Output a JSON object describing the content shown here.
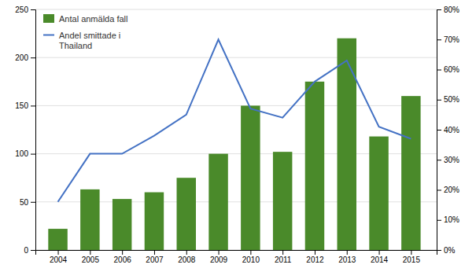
{
  "chart_data": {
    "type": "bar",
    "x": [
      2004,
      2005,
      2006,
      2007,
      2008,
      2009,
      2010,
      2011,
      2012,
      2013,
      2014,
      2015
    ],
    "xlim": [
      2003.3,
      2015.8
    ],
    "xticks": [
      2004,
      2005,
      2006,
      2007,
      2008,
      2009,
      2010,
      2011,
      2012,
      2013,
      2014,
      2015
    ],
    "ylim": [
      0,
      250
    ],
    "yticks": [
      0,
      50,
      100,
      150,
      200,
      250
    ],
    "y2lim": [
      0,
      0.8
    ],
    "y2ticks": [
      {
        "value": 0,
        "label": "0%"
      },
      {
        "value": 0.1,
        "label": "10%"
      },
      {
        "value": 0.2,
        "label": "20%"
      },
      {
        "value": 0.3,
        "label": "30%"
      },
      {
        "value": 0.4,
        "label": "40%"
      },
      {
        "value": 0.5,
        "label": "50%"
      },
      {
        "value": 0.6,
        "label": "60%"
      },
      {
        "value": 0.7,
        "label": "70%"
      },
      {
        "value": 0.8,
        "label": "80%"
      }
    ],
    "grid": true,
    "legend": "upper left",
    "series": [
      {
        "name": "Antal anmälda fall",
        "type": "bar",
        "color": "#4a8a2a",
        "values": [
          22,
          63,
          53,
          60,
          75,
          100,
          150,
          102,
          175,
          220,
          118,
          160
        ]
      },
      {
        "name": "Andel smittade i\nThailand",
        "type": "line",
        "color": "#4472c4",
        "axis": "y2",
        "values": [
          0.16,
          0.32,
          0.32,
          0.38,
          0.45,
          0.7,
          0.47,
          0.44,
          0.56,
          0.63,
          0.41,
          0.37
        ]
      }
    ]
  }
}
